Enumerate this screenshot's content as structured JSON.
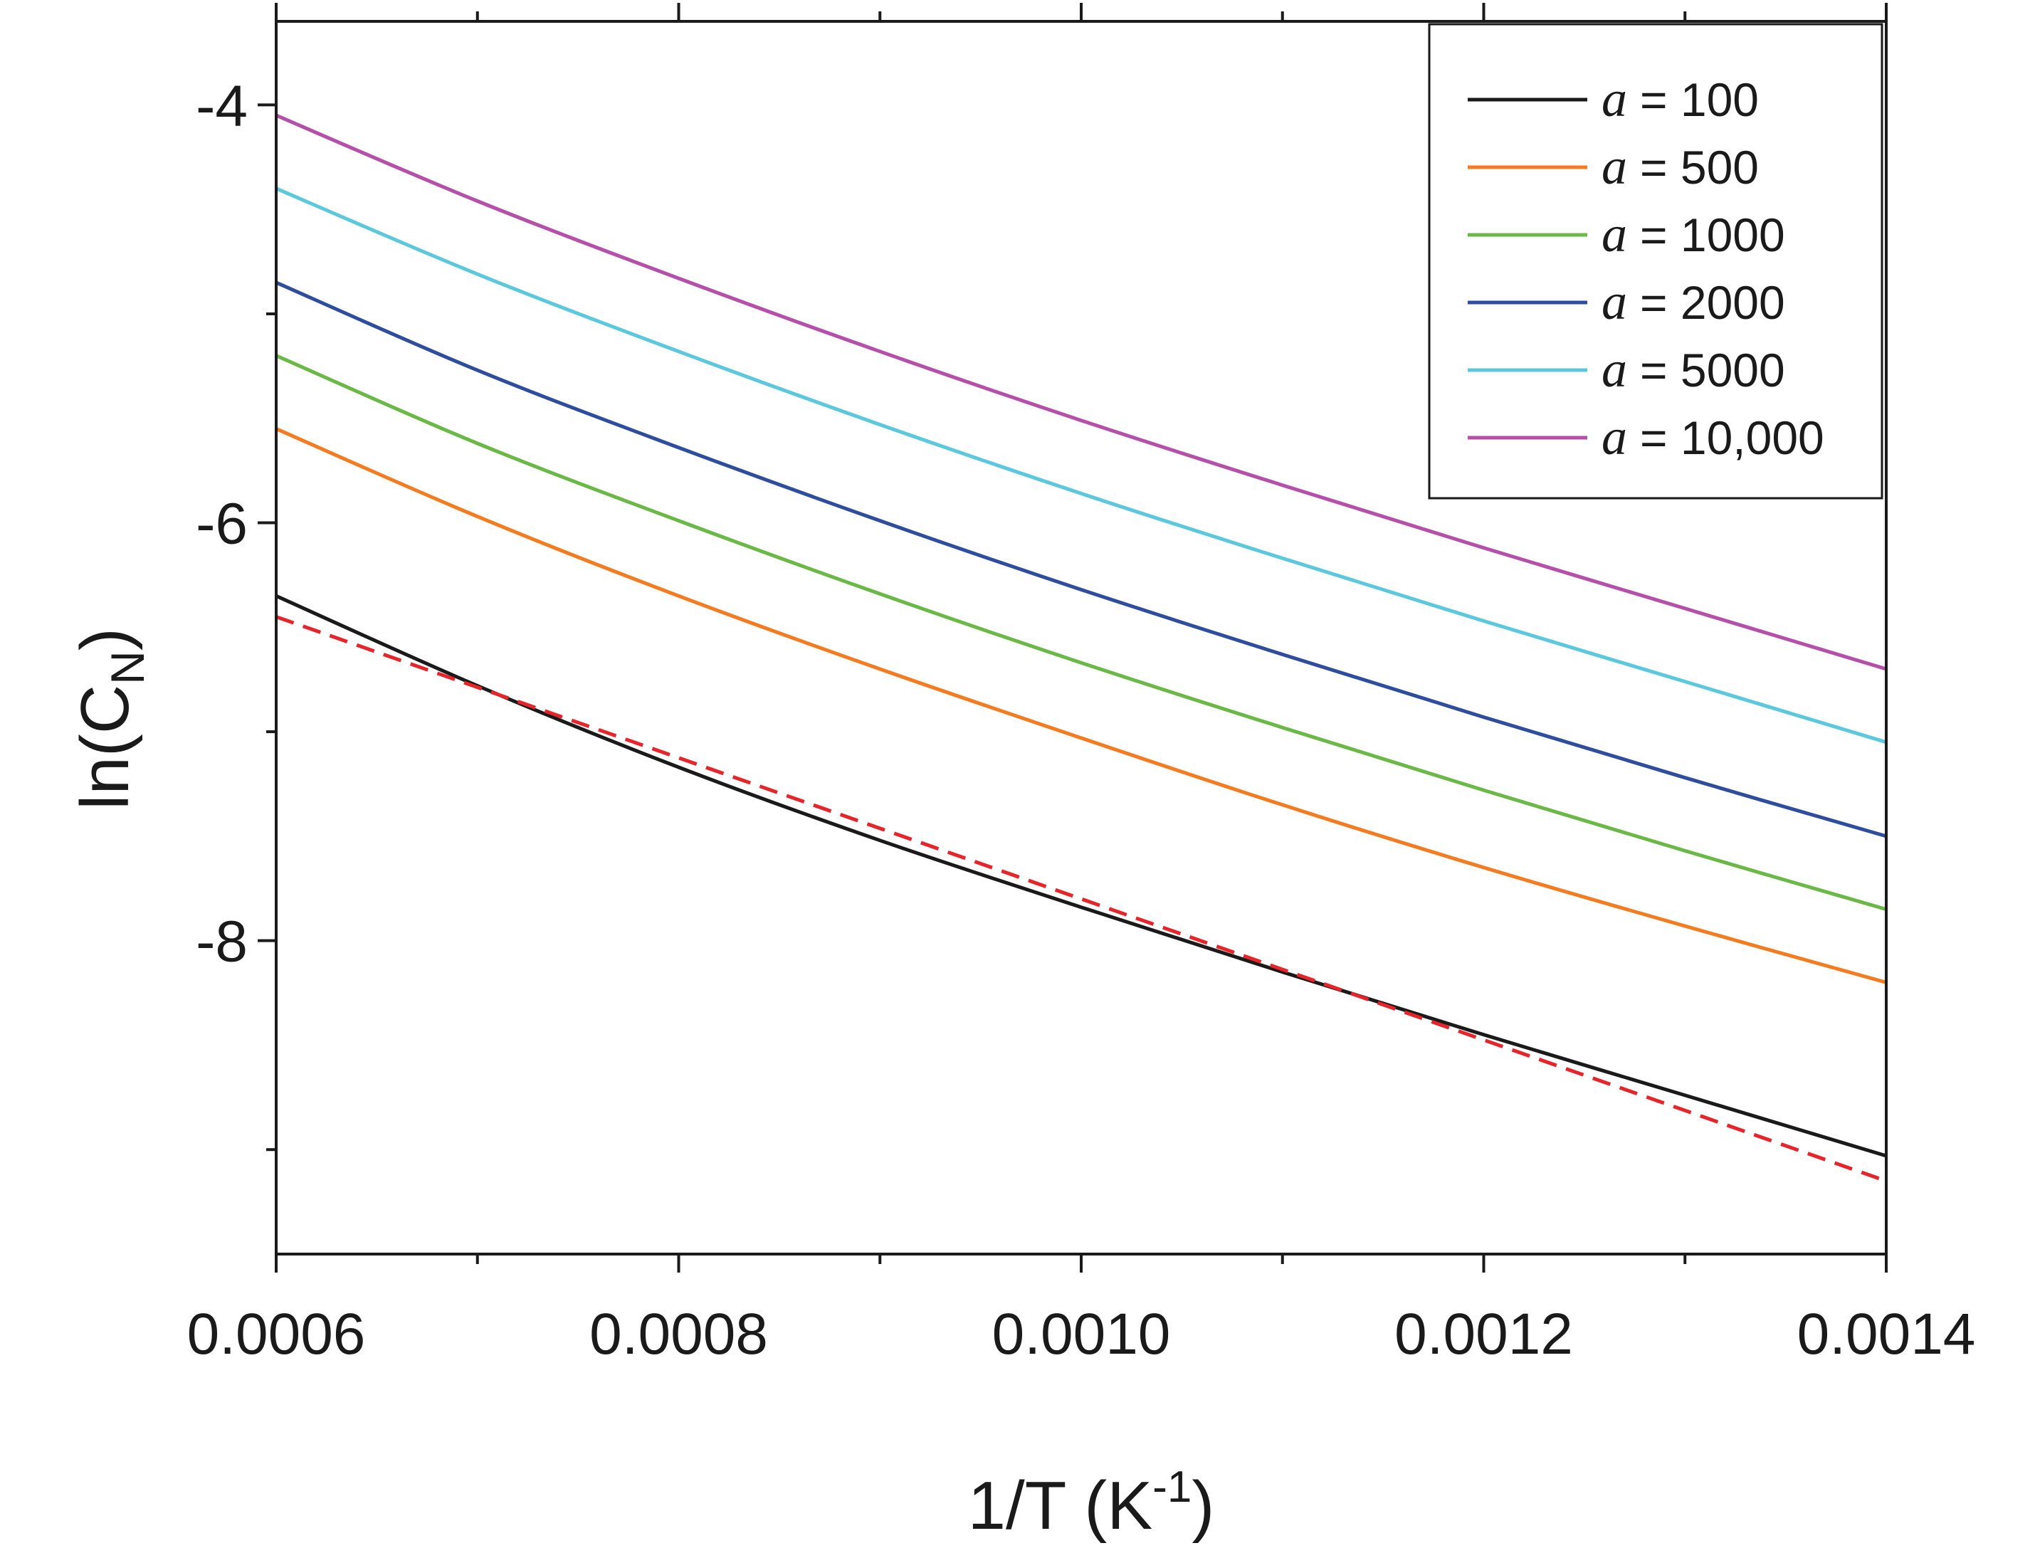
{
  "chart_data": {
    "type": "line",
    "title": "",
    "xlabel": {
      "base": "1/T (K",
      "sup": "-1",
      "close": ")"
    },
    "ylabel": {
      "base": "ln(C",
      "sub": "N",
      "close": ")"
    },
    "xlim": [
      0.0006,
      0.0014
    ],
    "ylim": [
      -9.5,
      -3.6
    ],
    "xticks": [
      0.0006,
      0.0008,
      0.001,
      0.0012,
      0.0014
    ],
    "xtick_labels": [
      "0.0006",
      "0.0008",
      "0.0010",
      "0.0012",
      "0.0014"
    ],
    "x_minor_ticks": [
      0.0007,
      0.0009,
      0.0011,
      0.0013
    ],
    "yticks": [
      -4,
      -6,
      -8
    ],
    "ytick_labels": [
      "-4",
      "-6",
      "-8"
    ],
    "y_minor_ticks": [
      -5,
      -7,
      -9
    ],
    "grid": false,
    "legend_position": "top-right",
    "x": [
      0.0006,
      0.0007,
      0.0008,
      0.0009,
      0.001,
      0.0011,
      0.0012,
      0.0013,
      0.0014
    ],
    "series": [
      {
        "name": "a = 100",
        "label_var": "a",
        "label_value": "= 100",
        "color": "#1a1a1a",
        "dashed": false,
        "values": [
          -6.35,
          -6.78,
          -7.17,
          -7.52,
          -7.84,
          -8.15,
          -8.45,
          -8.74,
          -9.03
        ]
      },
      {
        "name": "a = 500",
        "label_var": "a",
        "label_value": "= 500",
        "color": "#f47b20",
        "dashed": false,
        "values": [
          -5.55,
          -5.97,
          -6.35,
          -6.7,
          -7.03,
          -7.35,
          -7.65,
          -7.93,
          -8.2
        ]
      },
      {
        "name": "a = 1000",
        "label_var": "a",
        "label_value": "= 1000",
        "color": "#6ab846",
        "dashed": false,
        "values": [
          -5.2,
          -5.62,
          -5.99,
          -6.34,
          -6.67,
          -6.98,
          -7.28,
          -7.57,
          -7.85
        ]
      },
      {
        "name": "a = 2000",
        "label_var": "a",
        "label_value": "= 2000",
        "color": "#2e4d9e",
        "dashed": false,
        "values": [
          -4.85,
          -5.27,
          -5.64,
          -5.99,
          -6.32,
          -6.63,
          -6.93,
          -7.22,
          -7.5
        ]
      },
      {
        "name": "a = 5000",
        "label_var": "a",
        "label_value": "= 5000",
        "color": "#5bc8de",
        "dashed": false,
        "values": [
          -4.4,
          -4.81,
          -5.18,
          -5.53,
          -5.86,
          -6.17,
          -6.47,
          -6.76,
          -7.05
        ]
      },
      {
        "name": "a = 10,000",
        "label_var": "a",
        "label_value": "= 10,000",
        "color": "#b54fa9",
        "dashed": false,
        "values": [
          -4.05,
          -4.46,
          -4.83,
          -5.18,
          -5.51,
          -5.82,
          -6.12,
          -6.41,
          -6.7
        ]
      },
      {
        "name": "linear fit",
        "color": "#e8242b",
        "dashed": true,
        "in_legend": false,
        "x": [
          0.0006,
          0.0014
        ],
        "values": [
          -6.45,
          -9.15
        ]
      }
    ]
  }
}
